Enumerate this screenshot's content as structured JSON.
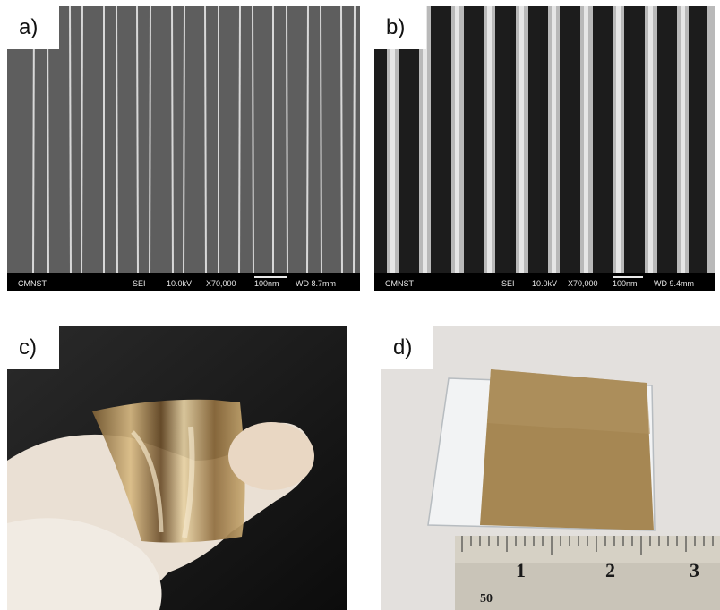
{
  "panels": [
    {
      "label": "a)",
      "sem": {
        "lab": "CMNST",
        "mode": "SEI",
        "voltage": "10.0kV",
        "mag": "X70,000",
        "scale": "100nm",
        "wd": "WD 8.7mm"
      }
    },
    {
      "label": "b)",
      "sem": {
        "lab": "CMNST",
        "mode": "SEI",
        "voltage": "10.0kV",
        "mag": "X70,000",
        "scale": "100nm",
        "wd": "WD 9.4mm"
      }
    },
    {
      "label": "c)"
    },
    {
      "label": "d)",
      "ruler": {
        "marks": [
          "1",
          "2",
          "3"
        ],
        "small": "50"
      }
    }
  ],
  "colors": {
    "sem_a_bg": "#5f5f5f",
    "sem_b_bg": "#1b1b1b",
    "gold_film": "#a88a56",
    "glove": "#efe6dc",
    "photo_c_bg": "#151515",
    "photo_d_bg": "#e4e1df"
  }
}
